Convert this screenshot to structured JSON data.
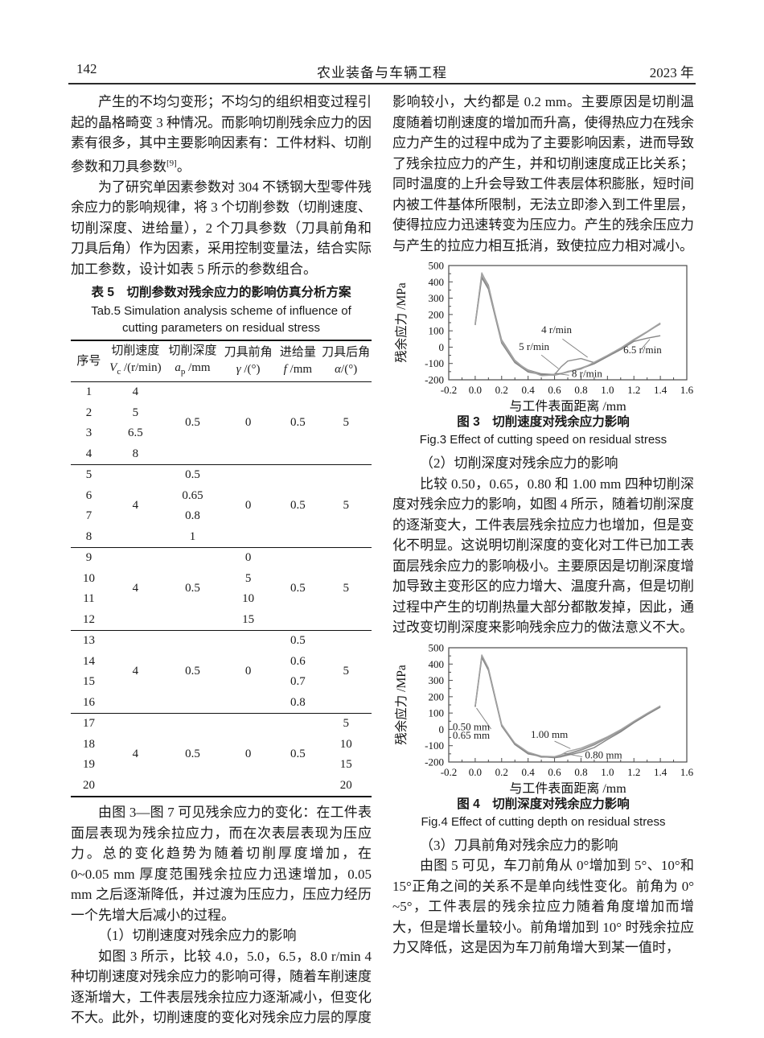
{
  "header": {
    "page_number": "142",
    "journal_title": "农业装备与车辆工程",
    "year": "2023 年"
  },
  "left": {
    "para1_main": "产生的不均匀变形；不均匀的组织相变过程引起的晶格畸变 3 种情况。而影响切削残余应力的因素有很多，其中主要影响因素有：工件材料、切削参数和刀具参数",
    "para1_ref": "[9]",
    "para1_tail": "。",
    "para2": "为了研究单因素参数对 304 不锈钢大型零件残余应力的影响规律，将 3 个切削参数（切削速度、切削深度、进给量），2 个刀具参数（刀具前角和刀具后角）作为因素，采用控制变量法，结合实际加工参数，设计如表 5 所示的参数组合。",
    "para3": "由图 3—图 7 可见残余应力的变化：在工件表面层表现为残余拉应力，而在次表层表现为压应力。总的变化趋势为随着切削厚度增加，在 0~0.05 mm 厚度范围残余拉应力迅速增加，0.05 mm 之后逐渐降低，并过渡为压应力，压应力经历一个先增大后减小的过程。",
    "heading1": "（1）切削速度对残余应力的影响",
    "para4": "如图 3 所示，比较 4.0，5.0，6.5，8.0 r/min 4 种切削速度对残余应力的影响可得，随着车削速度逐渐增大，工件表层残余拉应力逐渐减小，但变化不大。此外，切削速度的变化对残余应力层的厚度"
  },
  "table5": {
    "title_zh": "表 5　切削参数对残余应力的影响仿真分析方案",
    "title_en": "Tab.5  Simulation analysis scheme of influence of cutting parameters on residual stress",
    "columns": [
      {
        "zh": "序号",
        "sym": "",
        "sub": "",
        "unit": ""
      },
      {
        "zh": "切削速度",
        "sym": "V",
        "sub": "c",
        "unit": " /(r/min)"
      },
      {
        "zh": "切削深度",
        "sym": "a",
        "sub": "p",
        "unit": " /mm"
      },
      {
        "zh": "刀具前角",
        "sym": "γ",
        "sub": "",
        "unit": " /(°)"
      },
      {
        "zh": "进给量",
        "sym": "f",
        "sub": "",
        "unit": " /mm"
      },
      {
        "zh": "刀具后角",
        "sym": "α",
        "sub": "",
        "unit": "/(°)"
      }
    ],
    "groups": [
      {
        "no": [
          "1",
          "2",
          "3",
          "4"
        ],
        "speed": [
          "4",
          "5",
          "6.5",
          "8"
        ],
        "depth": "0.5",
        "rake": "0",
        "feed": "0.5",
        "relief": "5"
      },
      {
        "no": [
          "5",
          "6",
          "7",
          "8"
        ],
        "speed": "4",
        "depth": [
          "0.5",
          "0.65",
          "0.8",
          "1"
        ],
        "rake": "0",
        "feed": "0.5",
        "relief": "5"
      },
      {
        "no": [
          "9",
          "10",
          "11",
          "12"
        ],
        "speed": "4",
        "depth": "0.5",
        "rake": [
          "0",
          "5",
          "10",
          "15"
        ],
        "feed": "0.5",
        "relief": "5"
      },
      {
        "no": [
          "13",
          "14",
          "15",
          "16"
        ],
        "speed": "4",
        "depth": "0.5",
        "rake": "0",
        "feed": [
          "0.5",
          "0.6",
          "0.7",
          "0.8"
        ],
        "relief": "5"
      },
      {
        "no": [
          "17",
          "18",
          "19",
          "20"
        ],
        "speed": "4",
        "depth": "0.5",
        "rake": "0",
        "feed": "0.5",
        "relief": [
          "5",
          "10",
          "15",
          "20"
        ]
      }
    ]
  },
  "right": {
    "para1": "影响较小，大约都是 0.2 mm。主要原因是切削温度随着切削速度的增加而升高，使得热应力在残余应力产生的过程中成为了主要影响因素，进而导致了残余拉应力的产生，并和切削速度成正比关系；同时温度的上升会导致工件表层体积膨胀，短时间内被工件基体所限制，无法立即渗入到工件里层，使得拉应力迅速转变为压应力。产生的残余压应力与产生的拉应力相互抵消，致使拉应力相对减小。",
    "heading2": "（2）切削深度对残余应力的影响",
    "para2": "比较 0.50，0.65，0.80 和 1.00 mm 四种切削深度对残余应力的影响，如图 4 所示，随着切削深度的逐渐变大，工件表层残余拉应力也增加，但是变化不明显。这说明切削深度的变化对工件已加工表面层残余应力的影响极小。主要原因是切削深度增加导致主变形区的应力增大、温度升高，但是切削过程中产生的切削热量大部分都散发掉，因此，通过改变切削深度来影响残余应力的做法意义不大。",
    "heading3": "（3）刀具前角对残余应力的影响",
    "para3": "由图 5 可见，车刀前角从 0°增加到 5°、10°和 15°正角之间的关系不是单向线性变化。前角为 0° ~5°，工件表层的残余拉应力随着角度增加而增大，但是增长量较小。前角增加到 10° 时残余拉应力又降低，这是因为车刀前角增大到某一值时，"
  },
  "chart_data": [
    {
      "type": "line",
      "caption_zh": "图 3　切削速度对残余应力影响",
      "caption_en": "Fig.3  Effect of cutting speed on residual stress",
      "xlabel": "与工件表面距离 /mm",
      "ylabel": "残余应力 /MPa",
      "xlim": [
        -0.2,
        1.6
      ],
      "ylim": [
        -200,
        500
      ],
      "xticks": [
        -0.2,
        0,
        0.2,
        0.4,
        0.6,
        0.8,
        1.0,
        1.2,
        1.4,
        1.6
      ],
      "yticks": [
        500,
        400,
        300,
        200,
        100,
        0,
        -100,
        -200
      ],
      "grid": false,
      "x": [
        0,
        0.05,
        0.1,
        0.2,
        0.3,
        0.4,
        0.5,
        0.6,
        0.65,
        0.7,
        0.8,
        0.9,
        1.0,
        1.1,
        1.2,
        1.3,
        1.4
      ],
      "series": [
        {
          "name": "4 r/min",
          "values": [
            140,
            450,
            380,
            30,
            -90,
            -140,
            -163,
            -168,
            -120,
            -85,
            -70,
            -95,
            -55,
            -10,
            42,
            92,
            145
          ]
        },
        {
          "name": "5 r/min",
          "values": [
            148,
            435,
            365,
            45,
            -80,
            -148,
            -170,
            -166,
            -160,
            -150,
            -128,
            -98,
            -52,
            -8,
            45,
            95,
            142
          ]
        },
        {
          "name": "6.5 r/min",
          "values": [
            135,
            425,
            355,
            25,
            -95,
            -152,
            -168,
            -172,
            -163,
            -152,
            -132,
            -102,
            -58,
            -15,
            35,
            55,
            70
          ]
        },
        {
          "name": "8 r/min",
          "values": [
            142,
            455,
            372,
            35,
            -85,
            -143,
            -175,
            -170,
            -162,
            -148,
            -135,
            -92,
            -50,
            -5,
            48,
            96,
            148
          ]
        }
      ],
      "annotations": [
        {
          "label": "4 r/min",
          "tx": 0.5,
          "ty": 85,
          "line": [
            0.66,
            50,
            0.85,
            -62
          ]
        },
        {
          "label": "5 r/min",
          "tx": 0.33,
          "ty": -18,
          "line": [
            0.5,
            -48,
            0.63,
            -132
          ]
        },
        {
          "label": "6.5 r/min",
          "tx": 1.12,
          "ty": -38,
          "line": [
            1.26,
            -8,
            1.32,
            48
          ]
        },
        {
          "label": "8 r/min",
          "tx": 0.73,
          "ty": -182,
          "line": [
            0.71,
            -172,
            0.6,
            -160
          ]
        }
      ]
    },
    {
      "type": "line",
      "caption_zh": "图 4　切削深度对残余应力影响",
      "caption_en": "Fig.4  Effect of cutting depth on residual stress",
      "xlabel": "与工件表面距离 /mm",
      "ylabel": "残余应力 /MPa",
      "xlim": [
        -0.2,
        1.6
      ],
      "ylim": [
        -200,
        500
      ],
      "xticks": [
        -0.2,
        0,
        0.2,
        0.4,
        0.6,
        0.8,
        1.0,
        1.2,
        1.4,
        1.6
      ],
      "yticks": [
        500,
        400,
        300,
        200,
        100,
        0,
        -100,
        -200
      ],
      "grid": false,
      "x": [
        0,
        0.05,
        0.1,
        0.2,
        0.3,
        0.4,
        0.5,
        0.6,
        0.65,
        0.7,
        0.8,
        0.9,
        1.0,
        1.1,
        1.2,
        1.3,
        1.4
      ],
      "series": [
        {
          "name": "0.50 mm",
          "values": [
            140,
            447,
            368,
            25,
            -90,
            -146,
            -168,
            -172,
            -165,
            -152,
            -128,
            -95,
            -52,
            -8,
            45,
            95,
            140
          ]
        },
        {
          "name": "0.65 mm",
          "values": [
            143,
            452,
            374,
            30,
            -86,
            -142,
            -171,
            -169,
            -162,
            -148,
            -124,
            -90,
            -48,
            -5,
            48,
            97,
            143
          ]
        },
        {
          "name": "0.80 mm",
          "values": [
            137,
            440,
            362,
            20,
            -93,
            -150,
            -166,
            -174,
            -168,
            -158,
            -140,
            -112,
            -62,
            -15,
            40,
            90,
            136
          ]
        },
        {
          "name": "1.00 mm",
          "values": [
            146,
            456,
            376,
            28,
            -84,
            -140,
            -164,
            -167,
            -155,
            -135,
            -115,
            -82,
            -45,
            -2,
            50,
            98,
            144
          ]
        }
      ],
      "annotations": [
        {
          "label": "0.50 mm",
          "tx": -0.17,
          "ty": -5,
          "line": [
            0.01,
            130,
            0.12,
            2
          ]
        },
        {
          "label": "0.65 mm",
          "tx": -0.17,
          "ty": -58
        },
        {
          "label": "1.00 mm",
          "tx": 0.42,
          "ty": -52,
          "line": [
            0.6,
            -72,
            0.72,
            -118
          ]
        },
        {
          "label": "0.80 mm",
          "tx": 0.83,
          "ty": -178,
          "line": [
            0.81,
            -168,
            0.67,
            -146
          ]
        }
      ]
    }
  ]
}
